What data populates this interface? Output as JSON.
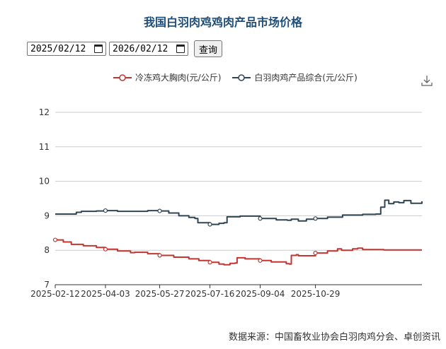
{
  "title": "我国白羽肉鸡鸡肉产品市场价格",
  "controls": {
    "start_date": "2025/02/12",
    "end_date": "2026/02/12",
    "query_label": "查询"
  },
  "source": "数据来源：中国畜牧业协会白羽肉鸡分会、卓创资讯",
  "icons": {
    "calendar": "calendar-icon",
    "download": "download-icon"
  },
  "chart_data": {
    "type": "line",
    "title": "我国白羽肉鸡鸡肉产品市场价格",
    "xlabel": "",
    "ylabel": "",
    "ylim": [
      7,
      12
    ],
    "yticks": [
      7,
      8,
      9,
      10,
      11,
      12
    ],
    "xlim": [
      "2025-02-12",
      "2026-02-12"
    ],
    "xticks": [
      "2025-02-12",
      "2025-04-03",
      "2025-05-27",
      "2025-07-16",
      "2025-09-04",
      "2025-10-29"
    ],
    "grid": true,
    "legend_position": "top",
    "series": [
      {
        "name": "冷冻鸡大胸肉(元/公斤)",
        "color": "#c23531",
        "points": [
          [
            "2025-02-12",
            8.3
          ],
          [
            "2025-02-20",
            8.24
          ],
          [
            "2025-02-28",
            8.17
          ],
          [
            "2025-03-12",
            8.13
          ],
          [
            "2025-03-25",
            8.08
          ],
          [
            "2025-04-03",
            8.03
          ],
          [
            "2025-04-15",
            7.98
          ],
          [
            "2025-04-28",
            7.93
          ],
          [
            "2025-05-02",
            7.94
          ],
          [
            "2025-05-15",
            7.9
          ],
          [
            "2025-05-27",
            7.85
          ],
          [
            "2025-06-10",
            7.8
          ],
          [
            "2025-06-25",
            7.75
          ],
          [
            "2025-07-05",
            7.7
          ],
          [
            "2025-07-16",
            7.65
          ],
          [
            "2025-07-25",
            7.6
          ],
          [
            "2025-07-30",
            7.58
          ],
          [
            "2025-08-05",
            7.62
          ],
          [
            "2025-08-10",
            7.63
          ],
          [
            "2025-08-12",
            7.78
          ],
          [
            "2025-08-20",
            7.75
          ],
          [
            "2025-09-04",
            7.7
          ],
          [
            "2025-09-15",
            7.66
          ],
          [
            "2025-09-30",
            7.61
          ],
          [
            "2025-10-03",
            7.6
          ],
          [
            "2025-10-05",
            7.85
          ],
          [
            "2025-10-10",
            7.87
          ],
          [
            "2025-10-12",
            7.84
          ],
          [
            "2025-10-29",
            7.92
          ],
          [
            "2025-11-10",
            7.98
          ],
          [
            "2025-11-20",
            8.04
          ],
          [
            "2025-11-24",
            8.0
          ],
          [
            "2025-12-05",
            8.04
          ],
          [
            "2025-12-10",
            8.06
          ],
          [
            "2025-12-15",
            8.02
          ],
          [
            "2026-01-05",
            8.01
          ],
          [
            "2026-02-12",
            8.01
          ]
        ],
        "markers": [
          "2025-02-12",
          "2025-04-03",
          "2025-05-27",
          "2025-07-16",
          "2025-09-04",
          "2025-10-29"
        ]
      },
      {
        "name": "白羽肉鸡产品综合(元/公斤)",
        "color": "#2f4554",
        "points": [
          [
            "2025-02-12",
            9.05
          ],
          [
            "2025-02-28",
            9.05
          ],
          [
            "2025-03-05",
            9.1
          ],
          [
            "2025-03-10",
            9.13
          ],
          [
            "2025-03-25",
            9.14
          ],
          [
            "2025-04-03",
            9.15
          ],
          [
            "2025-04-15",
            9.13
          ],
          [
            "2025-05-10",
            9.13
          ],
          [
            "2025-05-15",
            9.15
          ],
          [
            "2025-05-27",
            9.14
          ],
          [
            "2025-06-05",
            9.08
          ],
          [
            "2025-06-15",
            9.0
          ],
          [
            "2025-06-25",
            8.95
          ],
          [
            "2025-07-01",
            8.92
          ],
          [
            "2025-07-04",
            8.8
          ],
          [
            "2025-07-16",
            8.75
          ],
          [
            "2025-07-25",
            8.78
          ],
          [
            "2025-07-30",
            8.8
          ],
          [
            "2025-08-02",
            8.97
          ],
          [
            "2025-08-15",
            8.99
          ],
          [
            "2025-09-04",
            8.92
          ],
          [
            "2025-09-20",
            8.88
          ],
          [
            "2025-10-01",
            8.87
          ],
          [
            "2025-10-05",
            8.9
          ],
          [
            "2025-10-12",
            8.85
          ],
          [
            "2025-10-20",
            8.9
          ],
          [
            "2025-10-29",
            8.92
          ],
          [
            "2025-11-10",
            8.96
          ],
          [
            "2025-11-25",
            9.02
          ],
          [
            "2025-12-15",
            9.04
          ],
          [
            "2025-12-28",
            9.05
          ],
          [
            "2026-01-02",
            9.25
          ],
          [
            "2026-01-06",
            9.45
          ],
          [
            "2026-01-10",
            9.35
          ],
          [
            "2026-01-15",
            9.4
          ],
          [
            "2026-01-20",
            9.38
          ],
          [
            "2026-01-25",
            9.44
          ],
          [
            "2026-02-01",
            9.36
          ],
          [
            "2026-02-12",
            9.42
          ]
        ],
        "markers": [
          "2025-04-03",
          "2025-05-27",
          "2025-07-16",
          "2025-09-04",
          "2025-10-29"
        ]
      }
    ]
  }
}
